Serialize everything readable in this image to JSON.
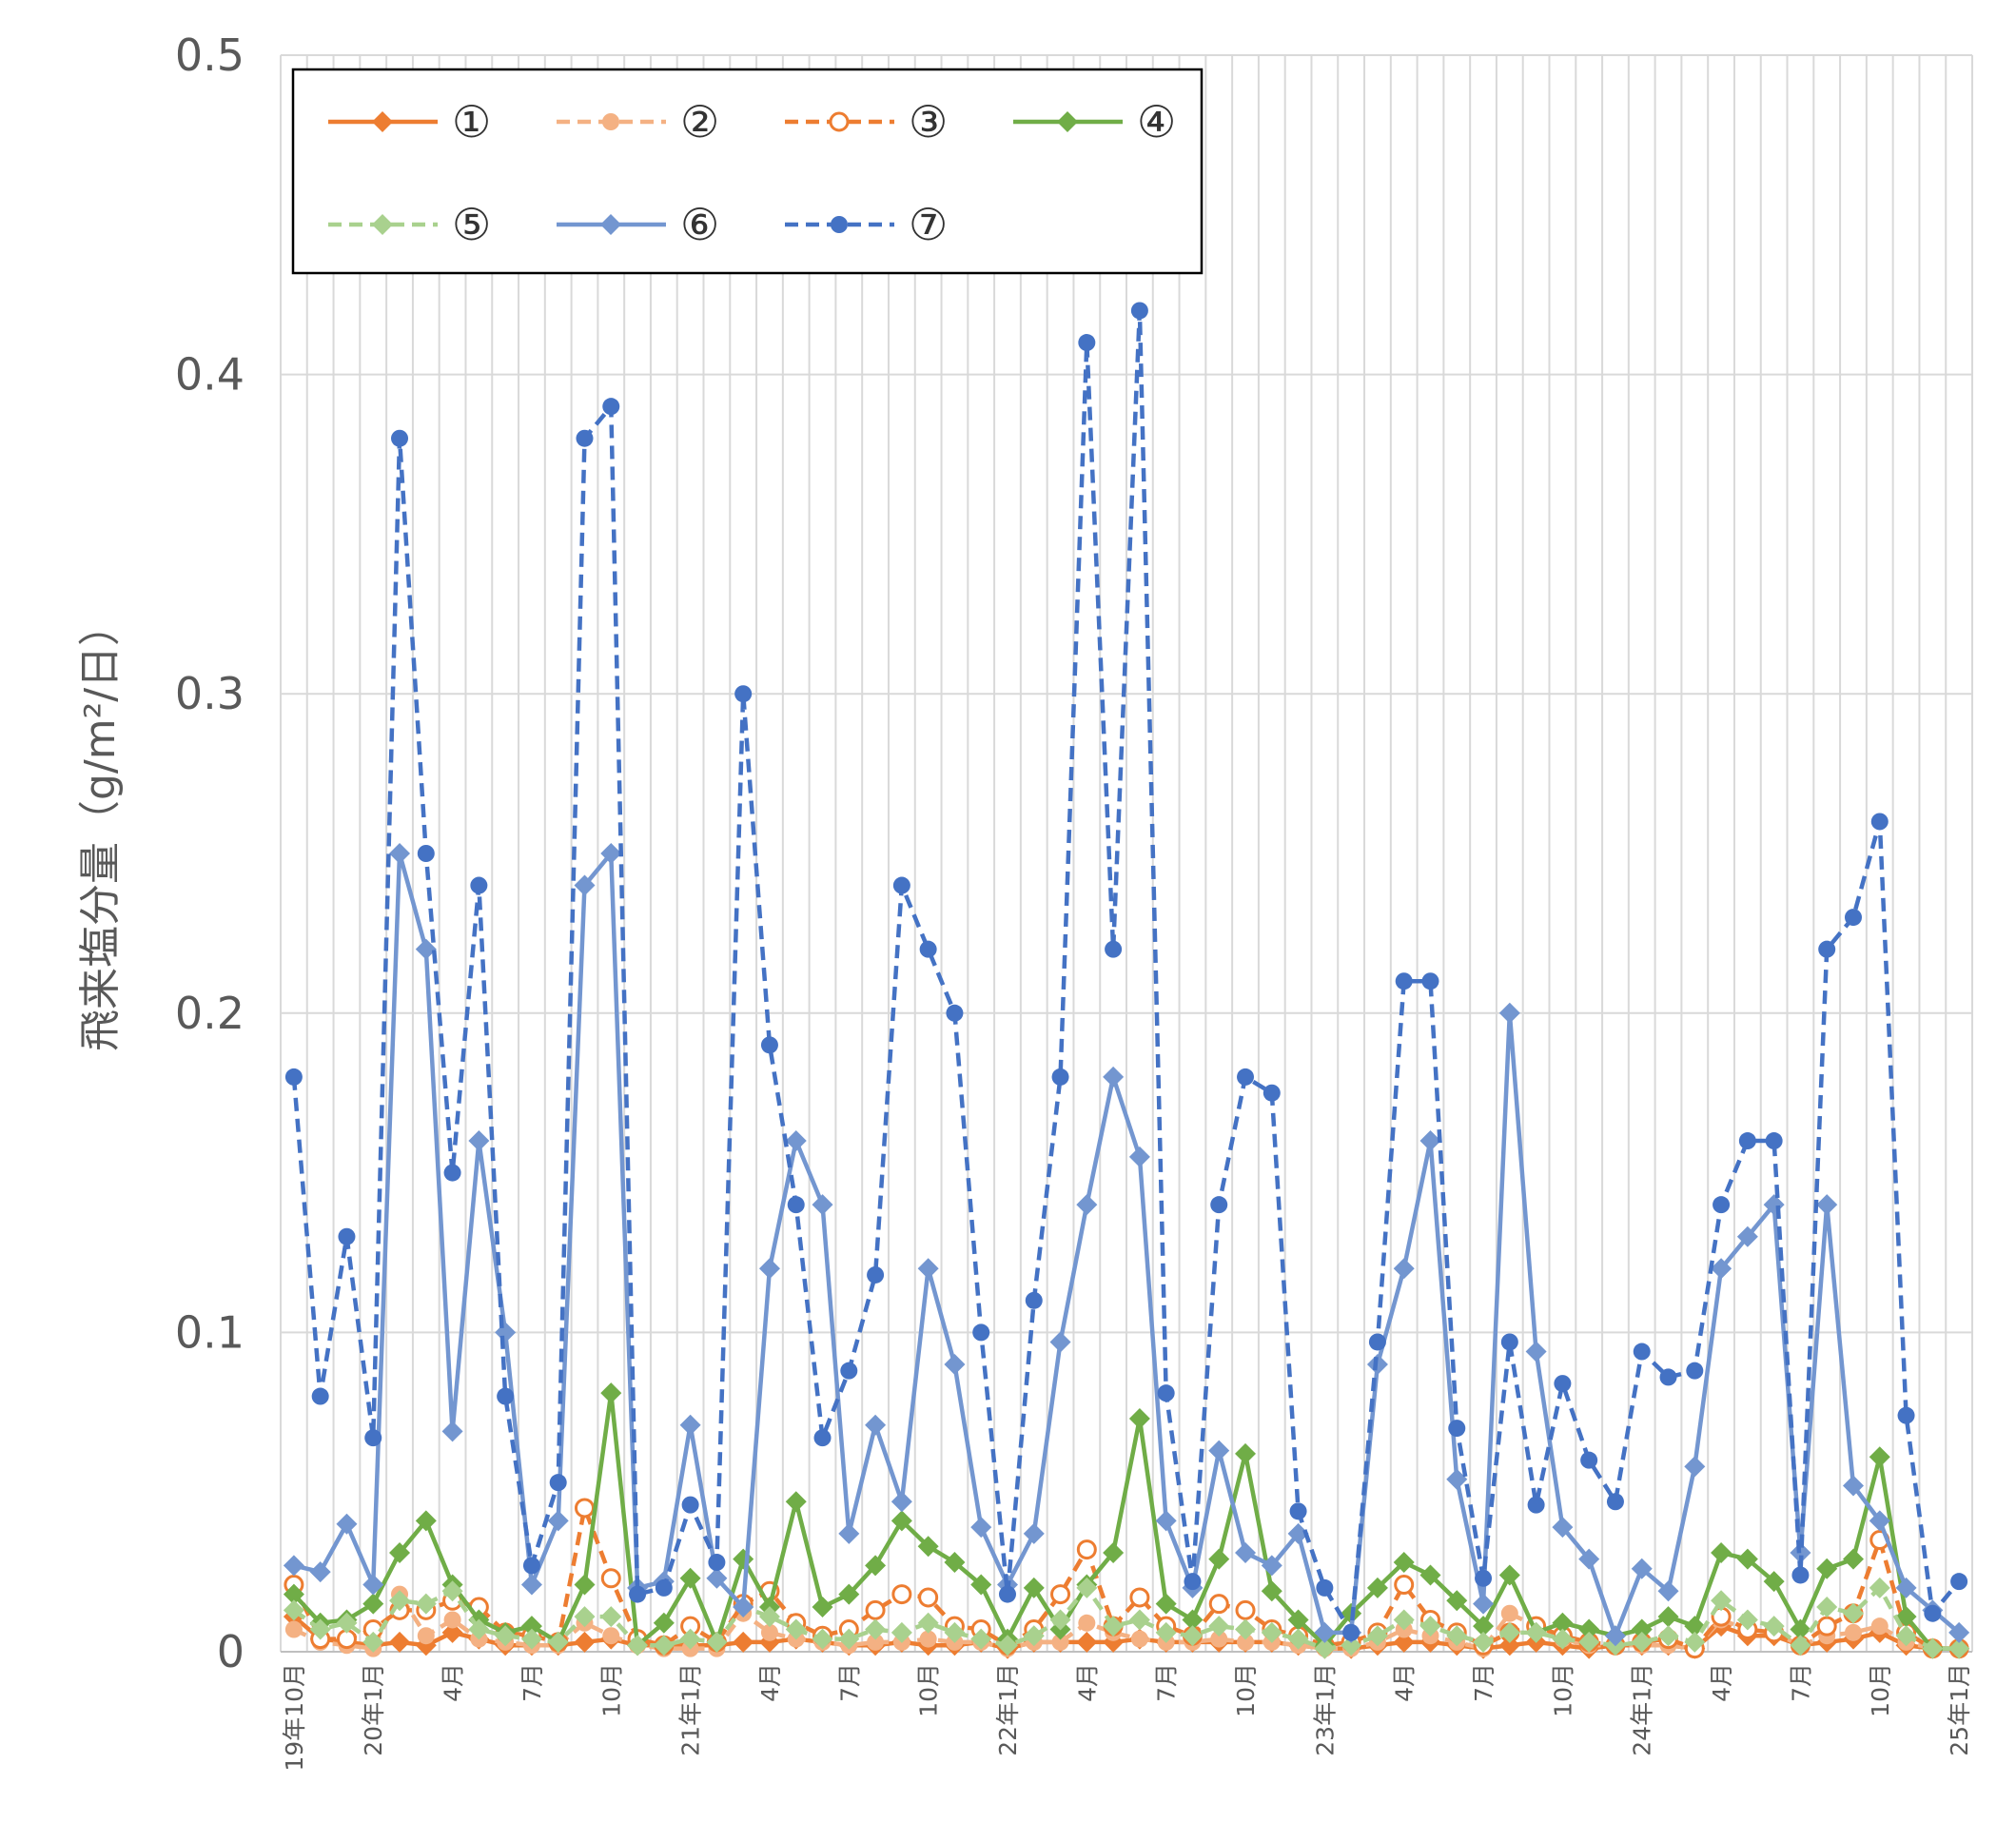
{
  "chart_data": {
    "type": "line",
    "title": "",
    "xlabel": "",
    "ylabel": "飛来塩分量（g/m²/日）",
    "ylim": [
      0,
      0.5
    ],
    "yticks": [
      {
        "value": 0,
        "label": "0"
      },
      {
        "value": 0.1,
        "label": "0.1"
      },
      {
        "value": 0.2,
        "label": "0.2"
      },
      {
        "value": 0.3,
        "label": "0.3"
      },
      {
        "value": 0.4,
        "label": "0.4"
      },
      {
        "value": 0.5,
        "label": "0.5"
      }
    ],
    "grid": true,
    "legend_position": "top-left",
    "x": [
      "2019-10",
      "2019-11",
      "2019-12",
      "2020-01",
      "2020-02",
      "2020-03",
      "2020-04",
      "2020-05",
      "2020-06",
      "2020-07",
      "2020-08",
      "2020-09",
      "2020-10",
      "2020-11",
      "2020-12",
      "2021-01",
      "2021-02",
      "2021-03",
      "2021-04",
      "2021-05",
      "2021-06",
      "2021-07",
      "2021-08",
      "2021-09",
      "2021-10",
      "2021-11",
      "2021-12",
      "2022-01",
      "2022-02",
      "2022-03",
      "2022-04",
      "2022-05",
      "2022-06",
      "2022-07",
      "2022-08",
      "2022-09",
      "2022-10",
      "2022-11",
      "2022-12",
      "2023-01",
      "2023-02",
      "2023-03",
      "2023-04",
      "2023-05",
      "2023-06",
      "2023-07",
      "2023-08",
      "2023-09",
      "2023-10",
      "2023-11",
      "2023-12",
      "2024-01",
      "2024-02",
      "2024-03",
      "2024-04",
      "2024-05",
      "2024-06",
      "2024-07",
      "2024-08",
      "2024-09",
      "2024-10",
      "2024-11",
      "2024-12",
      "2025-01"
    ],
    "xtick_labels": [
      {
        "index": 0,
        "label": "19年10月"
      },
      {
        "index": 3,
        "label": "20年1月"
      },
      {
        "index": 6,
        "label": "4月"
      },
      {
        "index": 9,
        "label": "7月"
      },
      {
        "index": 12,
        "label": "10月"
      },
      {
        "index": 15,
        "label": "21年1月"
      },
      {
        "index": 18,
        "label": "4月"
      },
      {
        "index": 21,
        "label": "7月"
      },
      {
        "index": 24,
        "label": "10月"
      },
      {
        "index": 27,
        "label": "22年1月"
      },
      {
        "index": 30,
        "label": "4月"
      },
      {
        "index": 33,
        "label": "7月"
      },
      {
        "index": 36,
        "label": "10月"
      },
      {
        "index": 39,
        "label": "23年1月"
      },
      {
        "index": 42,
        "label": "4月"
      },
      {
        "index": 45,
        "label": "7月"
      },
      {
        "index": 48,
        "label": "10月"
      },
      {
        "index": 51,
        "label": "24年1月"
      },
      {
        "index": 54,
        "label": "4月"
      },
      {
        "index": 57,
        "label": "7月"
      },
      {
        "index": 60,
        "label": "10月"
      },
      {
        "index": 63,
        "label": "25年1月"
      }
    ],
    "series": [
      {
        "name": "①",
        "color": "#ED7D31",
        "dash": "solid",
        "marker": "diamond",
        "values": [
          0.011,
          0.004,
          0.003,
          0.002,
          0.003,
          0.002,
          0.006,
          0.004,
          0.002,
          0.002,
          0.002,
          0.003,
          0.004,
          0.002,
          0.002,
          0.002,
          0.002,
          0.003,
          0.003,
          0.004,
          0.003,
          0.002,
          0.002,
          0.003,
          0.002,
          0.002,
          0.003,
          0.001,
          0.003,
          0.003,
          0.003,
          0.003,
          0.004,
          0.003,
          0.003,
          0.003,
          0.003,
          0.003,
          0.002,
          0.001,
          0.001,
          0.002,
          0.003,
          0.003,
          0.002,
          0.001,
          0.002,
          0.003,
          0.002,
          0.001,
          0.002,
          0.002,
          0.002,
          0.001,
          0.008,
          0.005,
          0.005,
          0.002,
          0.003,
          0.004,
          0.006,
          0.002,
          0.001,
          0.001
        ]
      },
      {
        "name": "②",
        "color": "#F4B183",
        "dash": "dashed",
        "marker": "circle",
        "values": [
          0.007,
          0.003,
          0.002,
          0.001,
          0.018,
          0.005,
          0.01,
          0.004,
          0.003,
          0.002,
          0.002,
          0.009,
          0.005,
          0.002,
          0.001,
          0.001,
          0.001,
          0.012,
          0.006,
          0.004,
          0.003,
          0.002,
          0.003,
          0.003,
          0.004,
          0.003,
          0.003,
          0.001,
          0.003,
          0.003,
          0.009,
          0.006,
          0.004,
          0.003,
          0.003,
          0.004,
          0.003,
          0.003,
          0.002,
          0.001,
          0.001,
          0.003,
          0.007,
          0.005,
          0.003,
          0.001,
          0.012,
          0.008,
          0.004,
          0.002,
          0.002,
          0.002,
          0.002,
          0.001,
          0.01,
          0.007,
          0.006,
          0.002,
          0.005,
          0.006,
          0.008,
          0.003,
          0.001,
          0.001
        ]
      },
      {
        "name": "③",
        "color": "#ED7D31",
        "dash": "dashed",
        "marker": "open-circle",
        "values": [
          0.021,
          0.004,
          0.004,
          0.007,
          0.013,
          0.013,
          0.016,
          0.014,
          0.006,
          0.005,
          0.003,
          0.045,
          0.023,
          0.004,
          0.002,
          0.008,
          0.003,
          0.015,
          0.019,
          0.009,
          0.005,
          0.007,
          0.013,
          0.018,
          0.017,
          0.008,
          0.007,
          0.002,
          0.007,
          0.018,
          0.032,
          0.008,
          0.017,
          0.008,
          0.005,
          0.015,
          0.013,
          0.007,
          0.005,
          0.002,
          0.003,
          0.006,
          0.021,
          0.01,
          0.006,
          0.002,
          0.006,
          0.008,
          0.005,
          0.003,
          0.002,
          0.003,
          0.004,
          0.001,
          0.011,
          0.007,
          0.006,
          0.002,
          0.008,
          0.012,
          0.035,
          0.006,
          0.001,
          0.001
        ]
      },
      {
        "name": "④",
        "color": "#70AD47",
        "dash": "solid",
        "marker": "diamond",
        "values": [
          0.018,
          0.009,
          0.01,
          0.015,
          0.031,
          0.041,
          0.021,
          0.01,
          0.006,
          0.008,
          0.003,
          0.021,
          0.081,
          0.002,
          0.009,
          0.023,
          0.003,
          0.029,
          0.014,
          0.047,
          0.014,
          0.018,
          0.027,
          0.041,
          0.033,
          0.028,
          0.021,
          0.004,
          0.02,
          0.007,
          0.021,
          0.031,
          0.073,
          0.015,
          0.01,
          0.029,
          0.062,
          0.019,
          0.01,
          0.002,
          0.012,
          0.02,
          0.028,
          0.024,
          0.016,
          0.008,
          0.024,
          0.006,
          0.009,
          0.007,
          0.005,
          0.007,
          0.011,
          0.008,
          0.031,
          0.029,
          0.022,
          0.007,
          0.026,
          0.029,
          0.061,
          0.011,
          0.001,
          0.001
        ]
      },
      {
        "name": "⑤",
        "color": "#A9D18E",
        "dash": "dashed",
        "marker": "diamond",
        "values": [
          0.013,
          0.007,
          0.009,
          0.003,
          0.016,
          0.015,
          0.019,
          0.007,
          0.005,
          0.004,
          0.003,
          0.011,
          0.011,
          0.002,
          0.002,
          0.004,
          0.003,
          0.014,
          0.011,
          0.007,
          0.004,
          0.004,
          0.007,
          0.006,
          0.009,
          0.006,
          0.004,
          0.002,
          0.005,
          0.01,
          0.02,
          0.008,
          0.01,
          0.006,
          0.005,
          0.008,
          0.007,
          0.006,
          0.004,
          0.001,
          0.002,
          0.005,
          0.01,
          0.008,
          0.005,
          0.003,
          0.006,
          0.006,
          0.004,
          0.003,
          0.002,
          0.003,
          0.005,
          0.003,
          0.016,
          0.01,
          0.008,
          0.002,
          0.014,
          0.012,
          0.02,
          0.005,
          0.001,
          0.001
        ]
      },
      {
        "name": "⑥",
        "color": "#7396D0",
        "dash": "solid",
        "marker": "diamond",
        "values": [
          0.027,
          0.025,
          0.04,
          0.021,
          0.25,
          0.22,
          0.069,
          0.16,
          0.1,
          0.021,
          0.041,
          0.24,
          0.25,
          0.02,
          0.022,
          0.071,
          0.023,
          0.014,
          0.12,
          0.16,
          0.14,
          0.037,
          0.071,
          0.047,
          0.12,
          0.09,
          0.039,
          0.021,
          0.037,
          0.097,
          0.14,
          0.18,
          0.155,
          0.041,
          0.02,
          0.063,
          0.031,
          0.027,
          0.037,
          0.006,
          0.006,
          0.09,
          0.12,
          0.16,
          0.054,
          0.015,
          0.2,
          0.094,
          0.039,
          0.029,
          0.005,
          0.026,
          0.019,
          0.058,
          0.12,
          0.13,
          0.14,
          0.031,
          0.14,
          0.052,
          0.041,
          0.02,
          0.013,
          0.006
        ]
      },
      {
        "name": "⑦",
        "color": "#4472C4",
        "dash": "dashed",
        "marker": "circle",
        "values": [
          0.18,
          0.08,
          0.13,
          0.067,
          0.38,
          0.25,
          0.15,
          0.24,
          0.08,
          0.027,
          0.053,
          0.38,
          0.39,
          0.018,
          0.02,
          0.046,
          0.028,
          0.3,
          0.19,
          0.14,
          0.067,
          0.088,
          0.118,
          0.24,
          0.22,
          0.2,
          0.1,
          0.018,
          0.11,
          0.18,
          0.41,
          0.22,
          0.42,
          0.081,
          0.022,
          0.14,
          0.18,
          0.175,
          0.044,
          0.02,
          0.006,
          0.097,
          0.21,
          0.21,
          0.07,
          0.023,
          0.097,
          0.046,
          0.084,
          0.06,
          0.047,
          0.094,
          0.086,
          0.088,
          0.14,
          0.16,
          0.16,
          0.024,
          0.22,
          0.23,
          0.26,
          0.074,
          0.012,
          0.022
        ]
      }
    ]
  },
  "legend_rows": [
    [
      "①",
      "②",
      "③",
      "④"
    ],
    [
      "⑤",
      "⑥",
      "⑦"
    ]
  ]
}
